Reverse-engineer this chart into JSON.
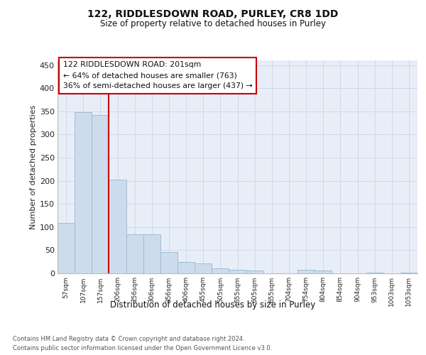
{
  "title_line1": "122, RIDDLESDOWN ROAD, PURLEY, CR8 1DD",
  "title_line2": "Size of property relative to detached houses in Purley",
  "xlabel": "Distribution of detached houses by size in Purley",
  "ylabel": "Number of detached properties",
  "footer_line1": "Contains HM Land Registry data © Crown copyright and database right 2024.",
  "footer_line2": "Contains public sector information licensed under the Open Government Licence v3.0.",
  "bar_labels": [
    "57sqm",
    "107sqm",
    "157sqm",
    "206sqm",
    "256sqm",
    "306sqm",
    "356sqm",
    "406sqm",
    "455sqm",
    "505sqm",
    "555sqm",
    "605sqm",
    "655sqm",
    "704sqm",
    "754sqm",
    "804sqm",
    "854sqm",
    "904sqm",
    "953sqm",
    "1003sqm",
    "1053sqm"
  ],
  "bar_values": [
    109,
    348,
    342,
    202,
    85,
    85,
    46,
    25,
    22,
    11,
    8,
    6,
    0,
    0,
    8,
    6,
    0,
    0,
    2,
    0,
    2
  ],
  "bar_color": "#cddcec",
  "bar_edge_color": "#a0bcd4",
  "annotation_line1": "122 RIDDLESDOWN ROAD: 201sqm",
  "annotation_line2": "← 64% of detached houses are smaller (763)",
  "annotation_line3": "36% of semi-detached houses are larger (437) →",
  "vline_color": "#cc0000",
  "annotation_box_edge": "#cc0000",
  "vline_x": 2.5,
  "ylim_max": 460,
  "yticks": [
    0,
    50,
    100,
    150,
    200,
    250,
    300,
    350,
    400,
    450
  ],
  "grid_color": "#d0d8e8",
  "bg_color": "#e8eef8"
}
